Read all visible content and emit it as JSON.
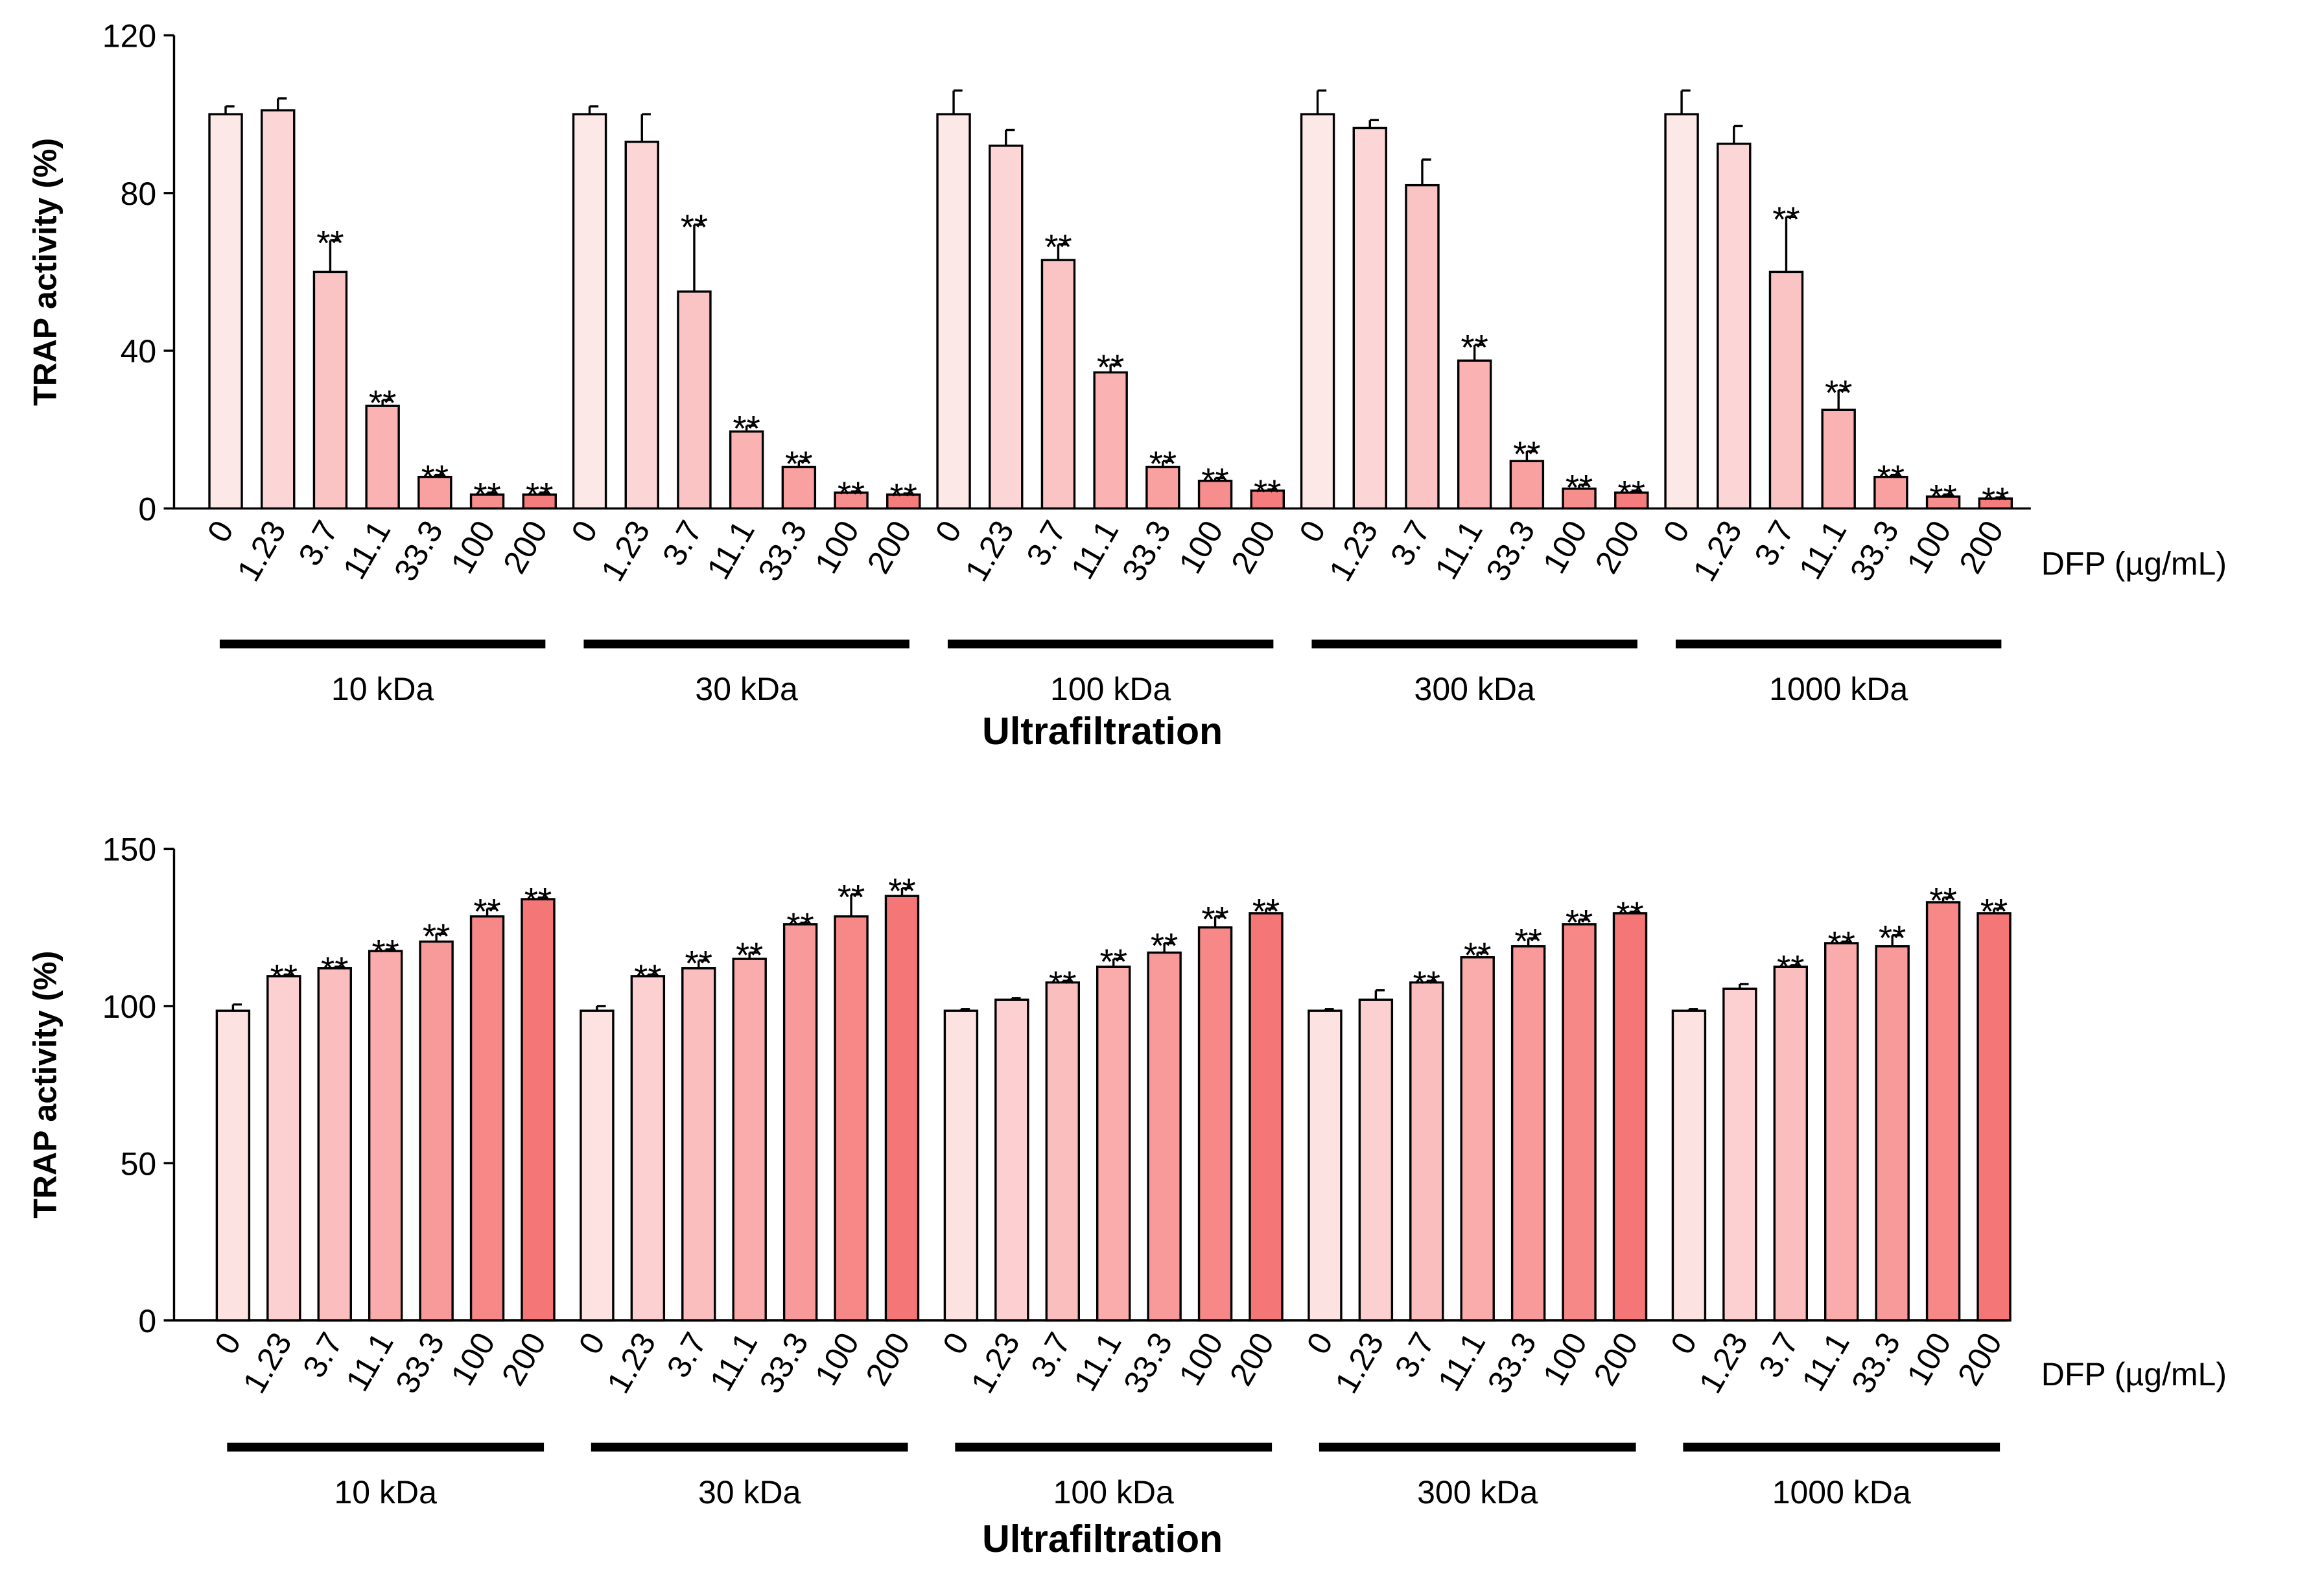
{
  "chart_data": [
    {
      "type": "bar",
      "ylabel": "TRAP activity (%)",
      "xlabel": "Ultrafiltration",
      "dose_label": "DFP (µg/mL)",
      "categories": [
        "0",
        "1.23",
        "3.7",
        "11.1",
        "33.3",
        "100",
        "200"
      ],
      "colors": [
        "#fde8e8",
        "#fcd6d6",
        "#fbc4c4",
        "#fab2b2",
        "#f9a0a0",
        "#f78e8e",
        "#f57c7c"
      ],
      "ylim": [
        0,
        120
      ],
      "yticks": [
        0,
        40,
        80,
        120
      ],
      "groups": [
        {
          "name": "10 kDa",
          "values": [
            100,
            101,
            60,
            26,
            8,
            3.5,
            3.5
          ],
          "errors": [
            2,
            3,
            8,
            1.5,
            0.5,
            0.5,
            0.5
          ],
          "annotations": [
            null,
            null,
            "**",
            "**",
            "**",
            "**",
            "**"
          ]
        },
        {
          "name": "30 kDa",
          "values": [
            100,
            93,
            55,
            19.5,
            10.5,
            4,
            3.5
          ],
          "errors": [
            2,
            7,
            17,
            1.5,
            1.5,
            0.3,
            0.3
          ],
          "annotations": [
            null,
            null,
            "**",
            "**",
            "**",
            "**",
            "**"
          ]
        },
        {
          "name": "100 kDa",
          "values": [
            100,
            92,
            63,
            34.5,
            10.5,
            7,
            4.5
          ],
          "errors": [
            6,
            4,
            4,
            2,
            1.5,
            0.7,
            0.3
          ],
          "annotations": [
            null,
            null,
            "**",
            "**",
            "**",
            "**",
            "**"
          ]
        },
        {
          "name": "300 kDa",
          "values": [
            100,
            96.5,
            82,
            37.5,
            12,
            5,
            4
          ],
          "errors": [
            6,
            2,
            6.5,
            4,
            2.5,
            1,
            0.5
          ],
          "annotations": [
            null,
            null,
            null,
            "**",
            "**",
            "**",
            "**"
          ]
        },
        {
          "name": "1000 kDa",
          "values": [
            100,
            92.5,
            60,
            25,
            8,
            3,
            2.5
          ],
          "errors": [
            6,
            4.5,
            14,
            5,
            0.5,
            0.5,
            0.3
          ],
          "annotations": [
            null,
            null,
            "**",
            "**",
            "**",
            "**",
            "**"
          ]
        }
      ]
    },
    {
      "type": "bar",
      "ylabel": "TRAP activity (%)",
      "xlabel": "Ultrafiltration",
      "dose_label": "DFP (µg/mL)",
      "categories": [
        "0",
        "1.23",
        "3.7",
        "11.1",
        "33.3",
        "100",
        "200"
      ],
      "colors": [
        "#fde2e2",
        "#fcd0d0",
        "#fbbebe",
        "#faacac",
        "#f89a9a",
        "#f78888",
        "#f57676"
      ],
      "ylim": [
        0,
        150
      ],
      "yticks": [
        0,
        50,
        100,
        150
      ],
      "groups": [
        {
          "name": "10 kDa",
          "values": [
            98.5,
            109.5,
            112,
            117.5,
            120.5,
            128.5,
            134
          ],
          "errors": [
            2,
            0.5,
            0.5,
            0.5,
            2.5,
            2.5,
            0.5
          ],
          "annotations": [
            null,
            "**",
            "**",
            "**",
            "**",
            "**",
            "**"
          ]
        },
        {
          "name": "30 kDa",
          "values": [
            98.5,
            109.5,
            112,
            115,
            126,
            128.5,
            135
          ],
          "errors": [
            1.5,
            0.5,
            2.5,
            2,
            0.5,
            7,
            2.5
          ],
          "annotations": [
            null,
            "**",
            "**",
            "**",
            "**",
            "**",
            "**"
          ]
        },
        {
          "name": "100 kDa",
          "values": [
            98.5,
            102,
            107.5,
            112.5,
            117,
            125,
            129.5
          ],
          "errors": [
            0.5,
            0.5,
            0.5,
            2.5,
            3,
            3.5,
            1.5
          ],
          "annotations": [
            null,
            null,
            "**",
            "**",
            "**",
            "**",
            "**"
          ]
        },
        {
          "name": "300 kDa",
          "values": [
            98.5,
            102,
            107.5,
            115.5,
            119,
            126,
            129.5
          ],
          "errors": [
            0.5,
            3,
            0.5,
            1.5,
            2.5,
            1.5,
            0.5
          ],
          "annotations": [
            null,
            null,
            "**",
            "**",
            "**",
            "**",
            "**"
          ]
        },
        {
          "name": "1000 kDa",
          "values": [
            98.5,
            105.5,
            112.5,
            120,
            119,
            133,
            129.5
          ],
          "errors": [
            0.5,
            1.5,
            0.5,
            0.5,
            3.5,
            1.5,
            1.5
          ],
          "annotations": [
            null,
            null,
            "**",
            "**",
            "**",
            "**",
            "**"
          ]
        }
      ]
    }
  ]
}
